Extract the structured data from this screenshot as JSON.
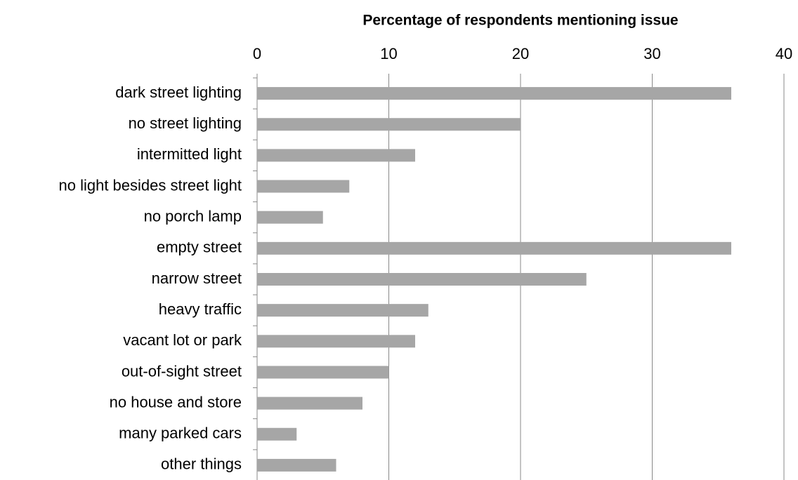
{
  "chart_data": {
    "type": "hbar",
    "title": "Percentage of respondents mentioning issue",
    "categories": [
      "dark street lighting",
      "no street lighting",
      "intermitted light",
      "no light besides street light",
      "no porch lamp",
      "empty street",
      "narrow street",
      "heavy traffic",
      "vacant lot or park",
      "out-of-sight street",
      "no house and store",
      "many parked cars",
      "other things"
    ],
    "values": [
      36,
      20,
      12,
      7,
      5,
      36,
      25,
      13,
      12,
      10,
      8,
      3,
      6
    ],
    "color": "#a6a6a6",
    "xlim": [
      0,
      40
    ],
    "xticks": [
      0,
      10,
      20,
      30,
      40
    ],
    "grid": true
  }
}
